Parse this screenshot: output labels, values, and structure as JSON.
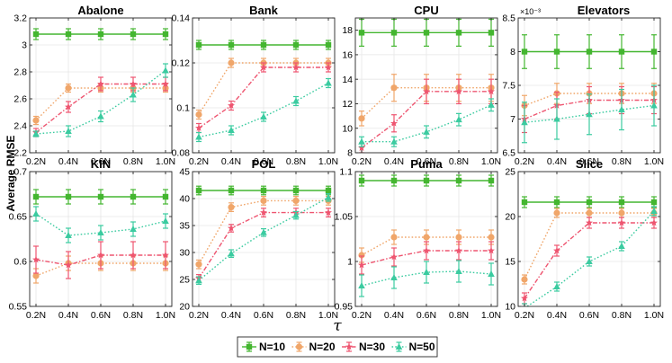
{
  "figure": {
    "ylabel": "Average RMSE",
    "xlabel": "τ",
    "legend_position": "bottom"
  },
  "chart_data": [
    {
      "type": "line",
      "title": "Abalone",
      "ylim": [
        2.2,
        3.2
      ],
      "yticks": [
        "2.2",
        "2.4",
        "2.6",
        "2.8",
        "3",
        "3.2"
      ],
      "x": [
        "0.2N",
        "0.4N",
        "0.6N",
        "0.8N",
        "1.0N"
      ],
      "series": [
        {
          "name": "N=10",
          "values": [
            3.08,
            3.08,
            3.08,
            3.08,
            3.08
          ],
          "err": [
            0.04,
            0.04,
            0.04,
            0.04,
            0.04
          ]
        },
        {
          "name": "N=20",
          "values": [
            2.44,
            2.68,
            2.68,
            2.68,
            2.68
          ],
          "err": [
            0.03,
            0.03,
            0.03,
            0.03,
            0.03
          ]
        },
        {
          "name": "N=30",
          "values": [
            2.35,
            2.54,
            2.71,
            2.71,
            2.71
          ],
          "err": [
            0.03,
            0.04,
            0.05,
            0.05,
            0.05
          ]
        },
        {
          "name": "N=50",
          "values": [
            2.34,
            2.36,
            2.47,
            2.63,
            2.81
          ],
          "err": [
            0.02,
            0.04,
            0.04,
            0.05,
            0.05
          ]
        }
      ]
    },
    {
      "type": "line",
      "title": "Bank",
      "ylim": [
        0.08,
        0.14
      ],
      "yticks": [
        "0.08",
        "0.1",
        "0.12",
        "0.14"
      ],
      "x": [
        "0.2N",
        "0.4N",
        "0.6N",
        "0.8N",
        "1.0N"
      ],
      "series": [
        {
          "name": "N=10",
          "values": [
            0.128,
            0.128,
            0.128,
            0.128,
            0.128
          ],
          "err": [
            0.002,
            0.002,
            0.002,
            0.002,
            0.002
          ]
        },
        {
          "name": "N=20",
          "values": [
            0.097,
            0.12,
            0.12,
            0.12,
            0.12
          ],
          "err": [
            0.002,
            0.002,
            0.002,
            0.002,
            0.002
          ]
        },
        {
          "name": "N=30",
          "values": [
            0.091,
            0.101,
            0.118,
            0.118,
            0.118
          ],
          "err": [
            0.002,
            0.002,
            0.002,
            0.002,
            0.002
          ]
        },
        {
          "name": "N=50",
          "values": [
            0.087,
            0.09,
            0.096,
            0.103,
            0.111
          ],
          "err": [
            0.002,
            0.002,
            0.002,
            0.002,
            0.002
          ]
        }
      ]
    },
    {
      "type": "line",
      "title": "CPU",
      "ylim": [
        8,
        19
      ],
      "yticks": [
        "8",
        "10",
        "12",
        "14",
        "16",
        "18"
      ],
      "x": [
        "0.2N",
        "0.4N",
        "0.6N",
        "0.8N",
        "1.0N"
      ],
      "series": [
        {
          "name": "N=10",
          "values": [
            17.8,
            17.8,
            17.8,
            17.8,
            17.8
          ],
          "err": [
            1.1,
            1.1,
            1.1,
            1.1,
            1.1
          ]
        },
        {
          "name": "N=20",
          "values": [
            10.8,
            13.3,
            13.3,
            13.3,
            13.3
          ],
          "err": [
            0.6,
            1.1,
            1.1,
            1.1,
            1.1
          ]
        },
        {
          "name": "N=30",
          "values": [
            8.4,
            10.4,
            13.0,
            13.0,
            13.0
          ],
          "err": [
            0.4,
            0.7,
            1.0,
            1.0,
            1.0
          ]
        },
        {
          "name": "N=50",
          "values": [
            8.9,
            8.9,
            9.7,
            10.7,
            11.9
          ],
          "err": [
            0.4,
            0.4,
            0.5,
            0.5,
            0.5
          ]
        }
      ]
    },
    {
      "type": "line",
      "title": "Elevators",
      "exponent": "×10⁻³",
      "ylim": [
        6.5,
        8.5
      ],
      "yticks": [
        "6.5",
        "7",
        "7.5",
        "8",
        "8.5"
      ],
      "x": [
        "0.2N",
        "0.4N",
        "0.6N",
        "0.8N",
        "1.0N"
      ],
      "series": [
        {
          "name": "N=10",
          "values": [
            8.0,
            8.0,
            8.0,
            8.0,
            8.0
          ],
          "err": [
            0.25,
            0.25,
            0.25,
            0.25,
            0.25
          ]
        },
        {
          "name": "N=20",
          "values": [
            7.2,
            7.38,
            7.38,
            7.38,
            7.38
          ],
          "err": [
            0.15,
            0.15,
            0.15,
            0.15,
            0.15
          ]
        },
        {
          "name": "N=30",
          "values": [
            7.0,
            7.2,
            7.28,
            7.28,
            7.28
          ],
          "err": [
            0.2,
            0.2,
            0.2,
            0.2,
            0.2
          ]
        },
        {
          "name": "N=50",
          "values": [
            6.95,
            7.0,
            7.07,
            7.14,
            7.2
          ],
          "err": [
            0.3,
            0.3,
            0.3,
            0.3,
            0.3
          ]
        }
      ]
    },
    {
      "type": "line",
      "title": "KIN",
      "ylim": [
        0.55,
        0.7
      ],
      "yticks": [
        "0.55",
        "0.6",
        "0.65",
        "0.7"
      ],
      "x": [
        "0.2N",
        "0.4N",
        "0.6N",
        "0.8N",
        "1.0N"
      ],
      "series": [
        {
          "name": "N=10",
          "values": [
            0.672,
            0.672,
            0.672,
            0.672,
            0.672
          ],
          "err": [
            0.008,
            0.008,
            0.008,
            0.008,
            0.008
          ]
        },
        {
          "name": "N=20",
          "values": [
            0.584,
            0.598,
            0.598,
            0.598,
            0.598
          ],
          "err": [
            0.008,
            0.008,
            0.008,
            0.008,
            0.008
          ]
        },
        {
          "name": "N=30",
          "values": [
            0.602,
            0.596,
            0.607,
            0.607,
            0.607
          ],
          "err": [
            0.015,
            0.015,
            0.015,
            0.015,
            0.015
          ]
        },
        {
          "name": "N=50",
          "values": [
            0.653,
            0.629,
            0.632,
            0.636,
            0.645
          ],
          "err": [
            0.008,
            0.008,
            0.008,
            0.008,
            0.008
          ]
        }
      ]
    },
    {
      "type": "line",
      "title": "POL",
      "ylim": [
        20,
        45
      ],
      "yticks": [
        "20",
        "25",
        "30",
        "35",
        "40",
        "45"
      ],
      "x": [
        "0.2N",
        "0.4N",
        "0.6N",
        "0.8N",
        "1.0N"
      ],
      "series": [
        {
          "name": "N=10",
          "values": [
            41.5,
            41.5,
            41.5,
            41.5,
            41.5
          ],
          "err": [
            0.8,
            0.8,
            0.8,
            0.8,
            0.8
          ]
        },
        {
          "name": "N=20",
          "values": [
            27.8,
            38.4,
            39.6,
            39.6,
            39.6
          ],
          "err": [
            0.8,
            0.8,
            0.8,
            0.8,
            0.8
          ]
        },
        {
          "name": "N=30",
          "values": [
            25.2,
            34.5,
            37.4,
            37.4,
            37.4
          ],
          "err": [
            0.7,
            0.7,
            0.8,
            0.8,
            0.8
          ]
        },
        {
          "name": "N=50",
          "values": [
            24.8,
            29.8,
            33.7,
            36.9,
            40.2
          ],
          "err": [
            0.7,
            0.7,
            0.7,
            0.7,
            0.7
          ]
        }
      ]
    },
    {
      "type": "line",
      "title": "Puma",
      "ylim": [
        0.95,
        1.1
      ],
      "yticks": [
        "0.95",
        "1",
        "1.05",
        "1.1"
      ],
      "x": [
        "0.2N",
        "0.4N",
        "0.6N",
        "0.8N",
        "1.0N"
      ],
      "series": [
        {
          "name": "N=10",
          "values": [
            1.09,
            1.09,
            1.09,
            1.09,
            1.09
          ],
          "err": [
            0.006,
            0.006,
            0.006,
            0.006,
            0.006
          ]
        },
        {
          "name": "N=20",
          "values": [
            1.007,
            1.027,
            1.027,
            1.027,
            1.027
          ],
          "err": [
            0.008,
            0.008,
            0.008,
            0.008,
            0.008
          ]
        },
        {
          "name": "N=30",
          "values": [
            0.996,
            1.005,
            1.012,
            1.012,
            1.012
          ],
          "err": [
            0.01,
            0.01,
            0.01,
            0.01,
            0.01
          ]
        },
        {
          "name": "N=50",
          "values": [
            0.973,
            0.982,
            0.988,
            0.989,
            0.986
          ],
          "err": [
            0.012,
            0.012,
            0.012,
            0.012,
            0.012
          ]
        }
      ]
    },
    {
      "type": "line",
      "title": "Slice",
      "ylim": [
        10,
        25
      ],
      "yticks": [
        "10",
        "15",
        "20",
        "25"
      ],
      "x": [
        "0.2N",
        "0.4N",
        "0.6N",
        "0.8N",
        "1.0N"
      ],
      "series": [
        {
          "name": "N=10",
          "values": [
            21.6,
            21.6,
            21.6,
            21.6,
            21.6
          ],
          "err": [
            0.6,
            0.6,
            0.6,
            0.6,
            0.6
          ]
        },
        {
          "name": "N=20",
          "values": [
            13.0,
            20.4,
            20.4,
            20.4,
            20.4
          ],
          "err": [
            0.5,
            0.5,
            0.5,
            0.5,
            0.5
          ]
        },
        {
          "name": "N=30",
          "values": [
            10.9,
            16.2,
            19.3,
            19.3,
            19.3
          ],
          "err": [
            0.6,
            0.6,
            0.6,
            0.6,
            0.6
          ]
        },
        {
          "name": "N=50",
          "values": [
            9.8,
            12.2,
            15.0,
            16.7,
            20.6
          ],
          "err": [
            0.5,
            0.5,
            0.5,
            0.5,
            0.5
          ]
        }
      ]
    }
  ],
  "legend": [
    {
      "name": "N=10",
      "color": "#44B630",
      "dash": "none",
      "marker": "square"
    },
    {
      "name": "N=20",
      "color": "#F0A66A",
      "dash": "dotted",
      "marker": "circle"
    },
    {
      "name": "N=30",
      "color": "#EE5570",
      "dash": "dashdot",
      "marker": "star"
    },
    {
      "name": "N=50",
      "color": "#3BCBA0",
      "dash": "dotted",
      "marker": "triangle"
    }
  ]
}
